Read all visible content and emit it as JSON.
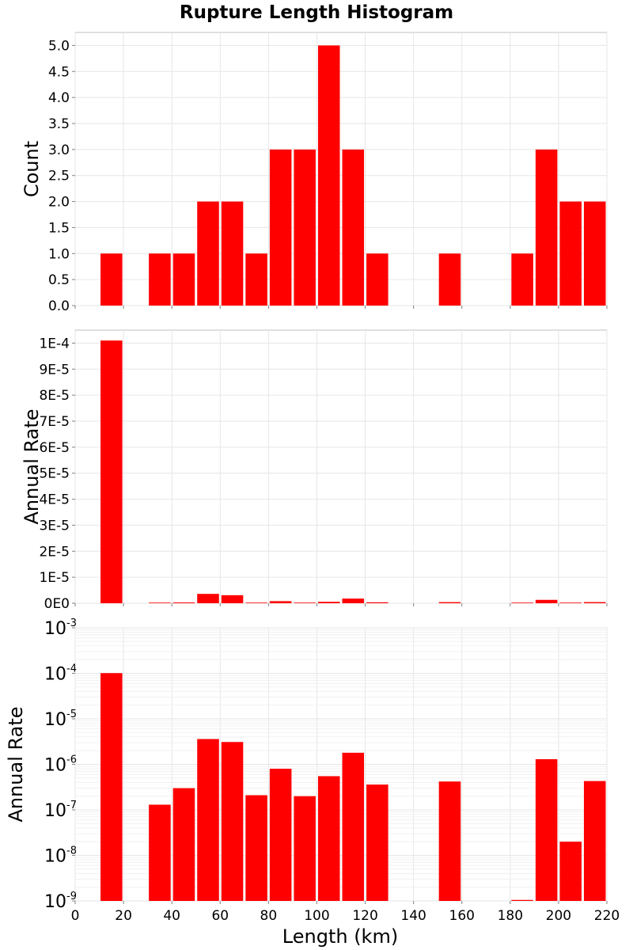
{
  "title": "Rupture Length Histogram",
  "chart_data": {
    "type": "bar",
    "title": "Rupture Length Histogram",
    "xlabel": "Length (km)",
    "xlim": [
      0,
      220
    ],
    "x_ticks": [
      "0",
      "20",
      "40",
      "60",
      "80",
      "100",
      "120",
      "140",
      "160",
      "180",
      "200",
      "220"
    ],
    "bin_centers": [
      15,
      35,
      45,
      55,
      65,
      75,
      85,
      95,
      105,
      115,
      125,
      155,
      185,
      195,
      205,
      215
    ],
    "bar_color": "#ff0000",
    "panels": [
      {
        "ylabel": "Count",
        "scale": "linear",
        "ylim": [
          0,
          5.25
        ],
        "y_ticks": [
          "0.0",
          "0.5",
          "1.0",
          "1.5",
          "2.0",
          "2.5",
          "3.0",
          "3.5",
          "4.0",
          "4.5",
          "5.0"
        ],
        "values": [
          1,
          1,
          1,
          2,
          2,
          1,
          3,
          3,
          5,
          3,
          1,
          1,
          1,
          3,
          2,
          2
        ]
      },
      {
        "ylabel": "Annual Rate",
        "scale": "linear",
        "ylim": [
          0,
          0.000105
        ],
        "y_ticks": [
          "0E0",
          "1E-5",
          "2E-5",
          "3E-5",
          "4E-5",
          "5E-5",
          "6E-5",
          "7E-5",
          "8E-5",
          "9E-5",
          "1E-4"
        ],
        "values": [
          0.000101,
          1.3e-07,
          3e-07,
          3.6e-06,
          3.1e-06,
          2.1e-07,
          8e-07,
          2e-07,
          5.5e-07,
          1.8e-06,
          3.6e-07,
          4.2e-07,
          1.05e-09,
          1.3e-06,
          2e-08,
          4.3e-07
        ]
      },
      {
        "ylabel": "Annual Rate",
        "scale": "log",
        "ylim": [
          1e-09,
          0.001
        ],
        "y_ticks": [
          {
            "base": "10",
            "exp": "-9"
          },
          {
            "base": "10",
            "exp": "-8"
          },
          {
            "base": "10",
            "exp": "-7"
          },
          {
            "base": "10",
            "exp": "-6"
          },
          {
            "base": "10",
            "exp": "-5"
          },
          {
            "base": "10",
            "exp": "-4"
          },
          {
            "base": "10",
            "exp": "-3"
          }
        ],
        "values": [
          0.000101,
          1.3e-07,
          3e-07,
          3.6e-06,
          3.1e-06,
          2.1e-07,
          8e-07,
          2e-07,
          5.5e-07,
          1.8e-06,
          3.6e-07,
          4.2e-07,
          1.05e-09,
          1.3e-06,
          2e-08,
          4.3e-07
        ]
      }
    ]
  }
}
